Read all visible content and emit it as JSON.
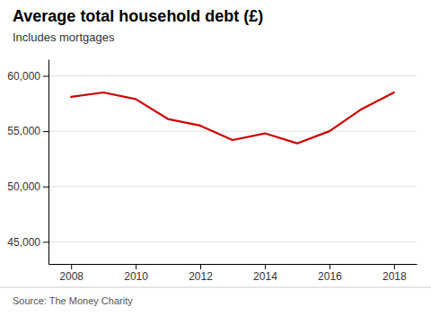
{
  "chart_data": {
    "type": "line",
    "title": "Average total household debt (£)",
    "subtitle": "Includes mortgages",
    "source": "Source: The Money Charity",
    "x": [
      2008,
      2009,
      2010,
      2011,
      2012,
      2013,
      2014,
      2015,
      2016,
      2017,
      2018
    ],
    "values": [
      58100,
      58500,
      57900,
      56100,
      55500,
      54200,
      54800,
      53900,
      55000,
      57000,
      58500
    ],
    "color": "#cc0000",
    "xlim": [
      2007.3,
      2018.7
    ],
    "ylim": [
      43000,
      61500
    ],
    "xticks": [
      2008,
      2010,
      2012,
      2014,
      2016,
      2018
    ],
    "yticks": [
      {
        "value": 45000,
        "label": "45,000"
      },
      {
        "value": 50000,
        "label": "50,000"
      },
      {
        "value": 55000,
        "label": "55,000"
      },
      {
        "value": 60000,
        "label": "60,000"
      }
    ],
    "grid": true
  }
}
